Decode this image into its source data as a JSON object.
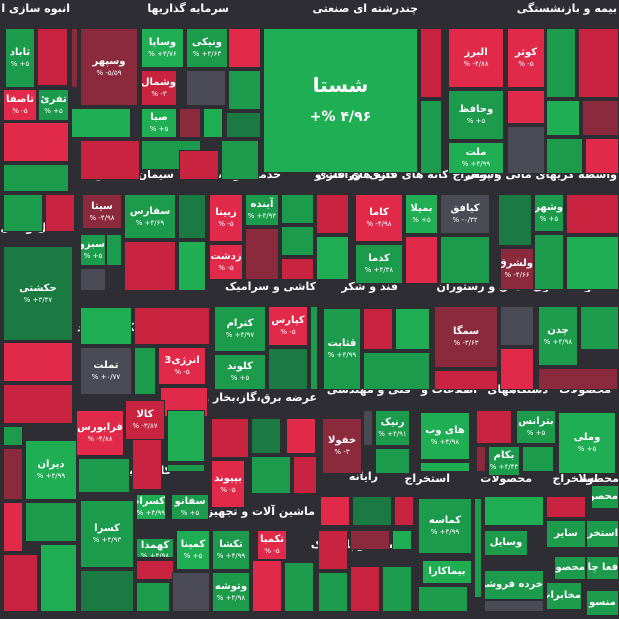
{
  "colors": {
    "background": "#2d2d33",
    "strong_green": "#1fae54",
    "green": "#1d9b4c",
    "dark_green": "#1a7a42",
    "strong_red": "#e12a4a",
    "red": "#c8243f",
    "dark_red": "#8a2a3c",
    "neutral": "#4b4b55"
  },
  "sectors": [
    {
      "id": "s1",
      "label": "نقشه بر"
    },
    {
      "id": "s2",
      "label": "انبوه سازی ا"
    },
    {
      "id": "s3",
      "label": "سرمایه گذاریها"
    },
    {
      "id": "s4",
      "label": "چندرشته ای صنعتی"
    },
    {
      "id": "s5",
      "label": "بیمه و بازنشستگی"
    },
    {
      "id": "s6",
      "label": "سیمان آهک گچ"
    },
    {
      "id": "s7",
      "label": "خدمات وابسته"
    },
    {
      "id": "s8",
      "label": "زراعت و"
    },
    {
      "id": "s9",
      "label": "کانه های فلزی"
    },
    {
      "id": "s10",
      "label": "استخراج کانه های فلزی"
    },
    {
      "id": "s11",
      "label": "واسطه گریهای مالی و پولی"
    },
    {
      "id": "s12",
      "label": "حمل و نقل انبا"
    },
    {
      "id": "s13",
      "label": "کاشی و سرامیک"
    },
    {
      "id": "s14",
      "label": "قند و شکر"
    },
    {
      "id": "s15",
      "label": "هتل و رستوران"
    },
    {
      "id": "s16",
      "label": "محصولات فلزی"
    },
    {
      "id": "s17",
      "label": "فعالیتهای کمکی به نهاد های"
    },
    {
      "id": "s18",
      "label": "عرضه برق،گاز،بخار و آب"
    },
    {
      "id": "s19",
      "label": "فنی و مهندسی"
    },
    {
      "id": "s20",
      "label": "اطلاعات و"
    },
    {
      "id": "s21",
      "label": "دستگاههای"
    },
    {
      "id": "s22",
      "label": "محصولات"
    },
    {
      "id": "s23",
      "label": "کانی غیر فلزی"
    },
    {
      "id": "s24",
      "label": "رایانه"
    },
    {
      "id": "s25",
      "label": "استخراج"
    },
    {
      "id": "s26",
      "label": "محصولات"
    },
    {
      "id": "s27",
      "label": "استخراج"
    },
    {
      "id": "s28",
      "label": "محصولا"
    },
    {
      "id": "s29",
      "label": "ماشین آلات و تجهیزات"
    },
    {
      "id": "s30",
      "label": "لاستیک و پلاستیک"
    }
  ],
  "tiles": [
    {
      "name": "شستا",
      "pct": "۴/۹۶ %+",
      "color": "strong_green",
      "big": true
    },
    {
      "name": "ثاباد",
      "pct": "۵+ %",
      "color": "green"
    },
    {
      "name": "تفرئ",
      "pct": "۵+ %",
      "color": "green"
    },
    {
      "name": "تاصفا",
      "pct": "۵- %",
      "color": "strong_red"
    },
    {
      "name": "وسپهر",
      "pct": "۵/۵۹- %",
      "color": "dark_red"
    },
    {
      "name": "وسایا",
      "pct": "۴/۷۶+ %",
      "color": "strong_green"
    },
    {
      "name": "ونیکی",
      "pct": "۴/۶۳+ %",
      "color": "green"
    },
    {
      "name": "وشمال",
      "pct": "۳- %",
      "color": "red"
    },
    {
      "name": "صبا",
      "pct": "۵+ %",
      "color": "strong_green"
    },
    {
      "name": "البرز",
      "pct": "۴/۸۸- %",
      "color": "strong_red"
    },
    {
      "name": "کوثر",
      "pct": "۵- %",
      "color": "strong_red"
    },
    {
      "name": "وحافظ",
      "pct": "۵+ %",
      "color": "green"
    },
    {
      "name": "ملت",
      "pct": "۴/۹۹+ %",
      "color": "strong_green"
    },
    {
      "name": "سیتا",
      "pct": "۴/۹۸- %",
      "color": "dark_red"
    },
    {
      "name": "سفارس",
      "pct": "۴/۶۹+ %",
      "color": "green"
    },
    {
      "name": "زبینا",
      "pct": "۵- %",
      "color": "strong_red"
    },
    {
      "name": "آینده",
      "pct": "۴/۹۴+ %",
      "color": "green"
    },
    {
      "name": "زدشت",
      "pct": "۵- %",
      "color": "strong_red"
    },
    {
      "name": "کاما",
      "pct": "۴/۹۸- %",
      "color": "strong_red"
    },
    {
      "name": "بمیلا",
      "pct": "۵+ %",
      "color": "strong_green"
    },
    {
      "name": "کدما",
      "pct": "۴/۳۸+ %",
      "color": "green"
    },
    {
      "name": "کیافق",
      "pct": "۰/۳۲- %",
      "color": "neutral"
    },
    {
      "name": "وشهر",
      "pct": "۵+ %",
      "color": "green"
    },
    {
      "name": "ولشرق",
      "pct": "۴/۶۶- %",
      "color": "dark_red"
    },
    {
      "name": "حکشتی",
      "pct": "۳/۴۷+ %",
      "color": "dark_green"
    },
    {
      "name": "سبزوا",
      "pct": "۵+ %",
      "color": "green"
    },
    {
      "name": "کترام",
      "pct": "۴/۹۷+ %",
      "color": "green"
    },
    {
      "name": "کپارس",
      "pct": "۵- %",
      "color": "strong_red"
    },
    {
      "name": "کلوند",
      "pct": "۵+ %",
      "color": "green"
    },
    {
      "name": "قثابت",
      "pct": "۴/۹۹+ %",
      "color": "green"
    },
    {
      "name": "سمگا",
      "pct": "۳/۶۳- %",
      "color": "dark_red"
    },
    {
      "name": "چدن",
      "pct": "۴/۹۸+ %",
      "color": "green"
    },
    {
      "name": "تملت",
      "pct": "۰/۷۷+ %",
      "color": "neutral"
    },
    {
      "name": "انرژی3",
      "pct": "۵- %",
      "color": "strong_red"
    },
    {
      "name": "کالا",
      "pct": "۳/۸۷- %",
      "color": "red"
    },
    {
      "name": "فرابورس",
      "pct": "۴/۸۸- %",
      "color": "strong_red"
    },
    {
      "name": "بپیوند",
      "pct": "۵- %",
      "color": "strong_red"
    },
    {
      "name": "خفولا",
      "pct": "۳- %",
      "color": "dark_red"
    },
    {
      "name": "رنیک",
      "pct": "۴/۹۱+ %",
      "color": "green"
    },
    {
      "name": "های وب",
      "pct": "۴/۹۸+ %",
      "color": "strong_green"
    },
    {
      "name": "بترانس",
      "pct": "۵+ %",
      "color": "green"
    },
    {
      "name": "بکام",
      "pct": "۴/۴۴+ %",
      "color": "green"
    },
    {
      "name": "وملی",
      "pct": "۵+ %",
      "color": "strong_green"
    },
    {
      "name": "دیران",
      "pct": "۴/۹۹+ %",
      "color": "strong_green"
    },
    {
      "name": "کسرام",
      "pct": "۴/۹۹+ %",
      "color": "strong_green"
    },
    {
      "name": "سفانو",
      "pct": "۵+ %",
      "color": "green"
    },
    {
      "name": "کهمدا",
      "pct": "۴/۹۸+ %",
      "color": "green"
    },
    {
      "name": "کمینا",
      "pct": "۵+ %",
      "color": "strong_green"
    },
    {
      "name": "کسرا",
      "pct": "۴/۹۳+ %",
      "color": "green"
    },
    {
      "name": "تکشا",
      "pct": "۴/۹۹+ %",
      "color": "green"
    },
    {
      "name": "تکمبا",
      "pct": "۵- %",
      "color": "strong_red"
    },
    {
      "name": "وتوشه",
      "pct": "۴/۹۸+ %",
      "color": "green"
    },
    {
      "name": "کماسه",
      "pct": "۴/۹۹+ %",
      "color": "green"
    },
    {
      "name": "بیماکارا",
      "pct": "",
      "color": "strong_green"
    },
    {
      "name": "وسایل",
      "pct": "",
      "color": "green"
    },
    {
      "name": "خرده فروشی",
      "pct": "",
      "color": "green"
    },
    {
      "name": "ساير",
      "pct": "",
      "color": "green"
    },
    {
      "name": "استخرا",
      "pct": "",
      "color": "green"
    },
    {
      "name": "محصولا",
      "pct": "",
      "color": "green"
    },
    {
      "name": "فعا چاپ",
      "pct": "",
      "color": "green"
    },
    {
      "name": "مخابرات",
      "pct": "",
      "color": "green"
    },
    {
      "name": "منسو",
      "pct": "",
      "color": "green"
    },
    {
      "name": "محصو",
      "pct": "",
      "color": "green"
    }
  ],
  "fillers": [
    "red",
    "strong_red",
    "green",
    "dark_red",
    "strong_green",
    "red",
    "green",
    "neutral",
    "dark_red",
    "strong_green",
    "red",
    "green",
    "strong_red",
    "green",
    "dark_green",
    "red",
    "green",
    "strong_red",
    "neutral",
    "green",
    "red",
    "strong_green",
    "dark_red",
    "green",
    "strong_red",
    "green",
    "red",
    "dark_green",
    "strong_green",
    "red",
    "green",
    "neutral",
    "strong_red",
    "green",
    "red",
    "green",
    "dark_red",
    "strong_green",
    "red",
    "green",
    "strong_red",
    "dark_green",
    "green",
    "red",
    "strong_green",
    "neutral",
    "red",
    "green",
    "dark_red",
    "strong_green",
    "red",
    "green",
    "strong_red",
    "green",
    "dark_green",
    "red",
    "strong_green",
    "green",
    "red",
    "neutral",
    "strong_red",
    "green",
    "dark_red",
    "green",
    "red",
    "strong_green",
    "green",
    "red",
    "dark_green",
    "strong_red",
    "green",
    "red",
    "neutral",
    "green",
    "strong_green",
    "red",
    "dark_red",
    "green",
    "strong_red",
    "green",
    "red",
    "strong_green",
    "dark_green",
    "red",
    "green",
    "neutral",
    "strong_red",
    "green",
    "red",
    "dark_red",
    "strong_green",
    "green",
    "red",
    "green",
    "strong_red",
    "dark_green",
    "red",
    "green",
    "strong_green",
    "neutral",
    "red",
    "green",
    "dark_red",
    "strong_red",
    "green",
    "red",
    "strong_green",
    "green",
    "red",
    "dark_green",
    "strong_red",
    "green",
    "neutral",
    "red",
    "green",
    "strong_green",
    "dark_red",
    "red",
    "green",
    "strong_red",
    "green",
    "red",
    "dark_green",
    "strong_green",
    "neutral",
    "red",
    "green",
    "strong_red",
    "green",
    "dark_red",
    "red",
    "strong_green",
    "green",
    "red",
    "green",
    "dark_green",
    "strong_red",
    "red",
    "neutral",
    "green",
    "strong_green",
    "red",
    "dark_red",
    "green",
    "strong_red",
    "green",
    "red",
    "strong_green",
    "green",
    "dark_green",
    "red",
    "neutral",
    "strong_red",
    "green",
    "red",
    "dark_red",
    "strong_green",
    "green",
    "red",
    "green",
    "strong_red",
    "dark_green",
    "red",
    "green",
    "strong_green",
    "neutral",
    "red",
    "green",
    "dark_red",
    "strong_red",
    "green",
    "red",
    "strong_green",
    "green",
    "red",
    "dark_green",
    "strong_red",
    "green",
    "neutral",
    "red",
    "green",
    "strong_green",
    "dark_red",
    "red",
    "green",
    "strong_red",
    "green",
    "red",
    "dark_green",
    "strong_green",
    "neutral",
    "red",
    "green",
    "strong_red",
    "green",
    "dark_red",
    "red",
    "strong_green",
    "green",
    "red",
    "green",
    "dark_green",
    "strong_red",
    "red",
    "neutral",
    "green",
    "strong_green",
    "red"
  ]
}
